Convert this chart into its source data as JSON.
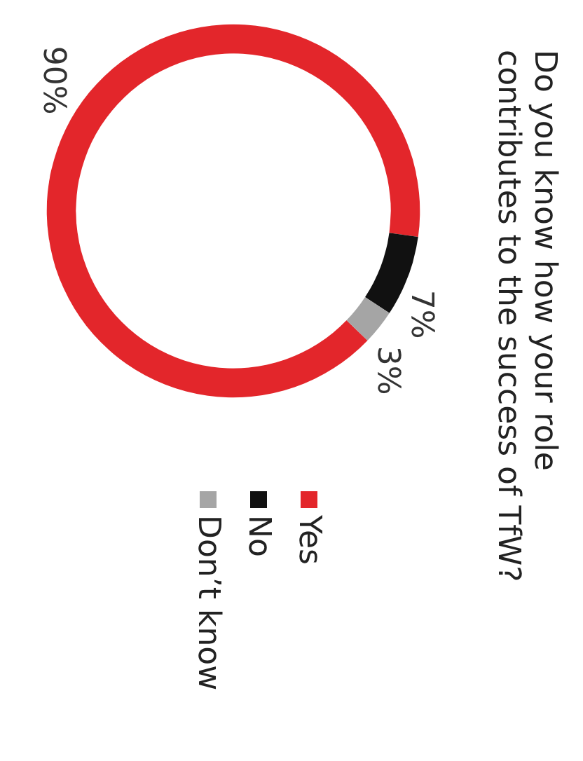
{
  "chart_data": {
    "type": "donut",
    "title": "Do you know how your role contributes to the success of TfW?",
    "categories": [
      "Yes",
      "No",
      "Don’t know"
    ],
    "values": [
      90,
      7,
      3
    ],
    "value_labels": [
      "90%",
      "7%",
      "3%"
    ],
    "colors": [
      "#e3262b",
      "#111111",
      "#a5a5a5"
    ],
    "legend": "right"
  }
}
